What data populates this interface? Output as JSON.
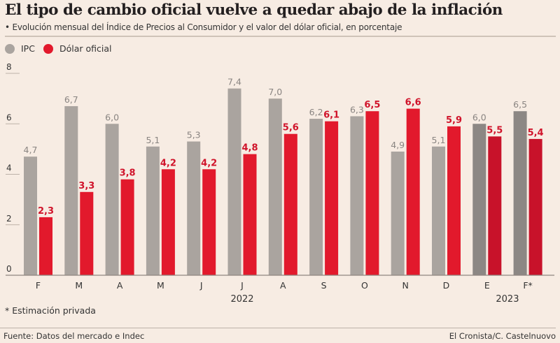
{
  "chart_data": {
    "type": "bar",
    "title": "El tipo de cambio oficial vuelve a quedar abajo de la inflación",
    "subtitle": "• Evolución mensual del Índice de Precios al Consumidor y el valor del dólar oficial, en porcentaje",
    "xlabel": "",
    "ylabel": "",
    "ylim": [
      0,
      8
    ],
    "yticks": [
      0,
      2,
      4,
      6,
      8
    ],
    "grid": false,
    "legend_position": "top-left",
    "categories": [
      "F",
      "M",
      "A",
      "M",
      "J",
      "J",
      "A",
      "S",
      "O",
      "N",
      "D",
      "E",
      "F*"
    ],
    "year_labels": [
      {
        "label": "2022",
        "under_category_index": 5
      },
      {
        "label": "2023",
        "under_category_index": 11.5
      }
    ],
    "series": [
      {
        "name": "IPC",
        "color": "#aaa49f",
        "highlight_color": "#8c8784",
        "values": [
          4.7,
          6.7,
          6.0,
          5.1,
          5.3,
          7.4,
          7.0,
          6.2,
          6.3,
          4.9,
          5.1,
          6.0,
          6.5
        ],
        "labels": [
          "4,7",
          "6,7",
          "6,0",
          "5,1",
          "5,3",
          "7,4",
          "7,0",
          "6,2",
          "6,3",
          "4,9",
          "5,1",
          "6,0",
          "6,5"
        ]
      },
      {
        "name": "Dólar oficial",
        "color": "#e2192c",
        "highlight_color": "#c8122a",
        "values": [
          2.3,
          3.3,
          3.8,
          4.2,
          4.2,
          4.8,
          5.6,
          6.1,
          6.5,
          6.6,
          5.9,
          5.5,
          5.4
        ],
        "labels": [
          "2,3",
          "3,3",
          "3,8",
          "4,2",
          "4,2",
          "4,8",
          "5,6",
          "6,1",
          "6,5",
          "6,6",
          "5,9",
          "5,5",
          "5,4"
        ]
      }
    ],
    "highlighted_categories": [
      11,
      12
    ],
    "annotations": [
      "* Estimación privada"
    ]
  },
  "legend": {
    "items": [
      {
        "label": "IPC",
        "color": "#aaa49f"
      },
      {
        "label": "Dólar oficial",
        "color": "#e2192c"
      }
    ]
  },
  "footer": {
    "footnote": "* Estimación privada",
    "source": "Fuente: Datos del mercado e Indec",
    "credit": "El Cronista/C. Castelnuovo"
  }
}
